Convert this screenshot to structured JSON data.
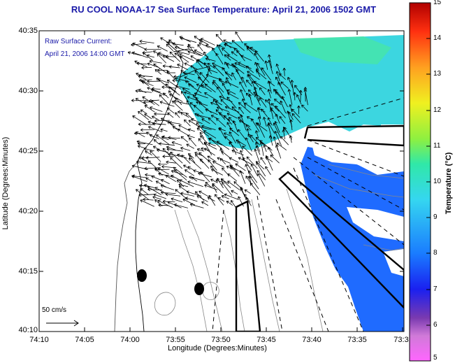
{
  "title": "RU COOL  NOAA-17  Sea Surface Temperature:  April 21, 2006 1502 GMT",
  "legend": {
    "line1": "Raw Surface Current:",
    "line2": "April 21, 2006 14:00 GMT"
  },
  "scale_label": "50 cm/s",
  "axes": {
    "xlabel": "Longitude (Degrees:Minutes)",
    "ylabel": "Latitude (Degrees:Minutes)",
    "xticks": [
      "74:10",
      "74:05",
      "74:00",
      "73:55",
      "73:50",
      "73:45",
      "73:40",
      "73:35",
      "73:3"
    ],
    "yticks": [
      "40:35",
      "40:30",
      "40:25",
      "40:20",
      "40:15",
      "40:10"
    ]
  },
  "colorbar": {
    "label": "Temperature (°C)",
    "ticks": [
      "15",
      "14",
      "13",
      "12",
      "11",
      "10",
      "9",
      "8",
      "7",
      "6",
      "5"
    ],
    "min": 5,
    "max": 15
  },
  "colors": {
    "title": "#1a1aa8",
    "sst_warm": "#3cd6e0",
    "sst_cool": "#1f6bff"
  }
}
